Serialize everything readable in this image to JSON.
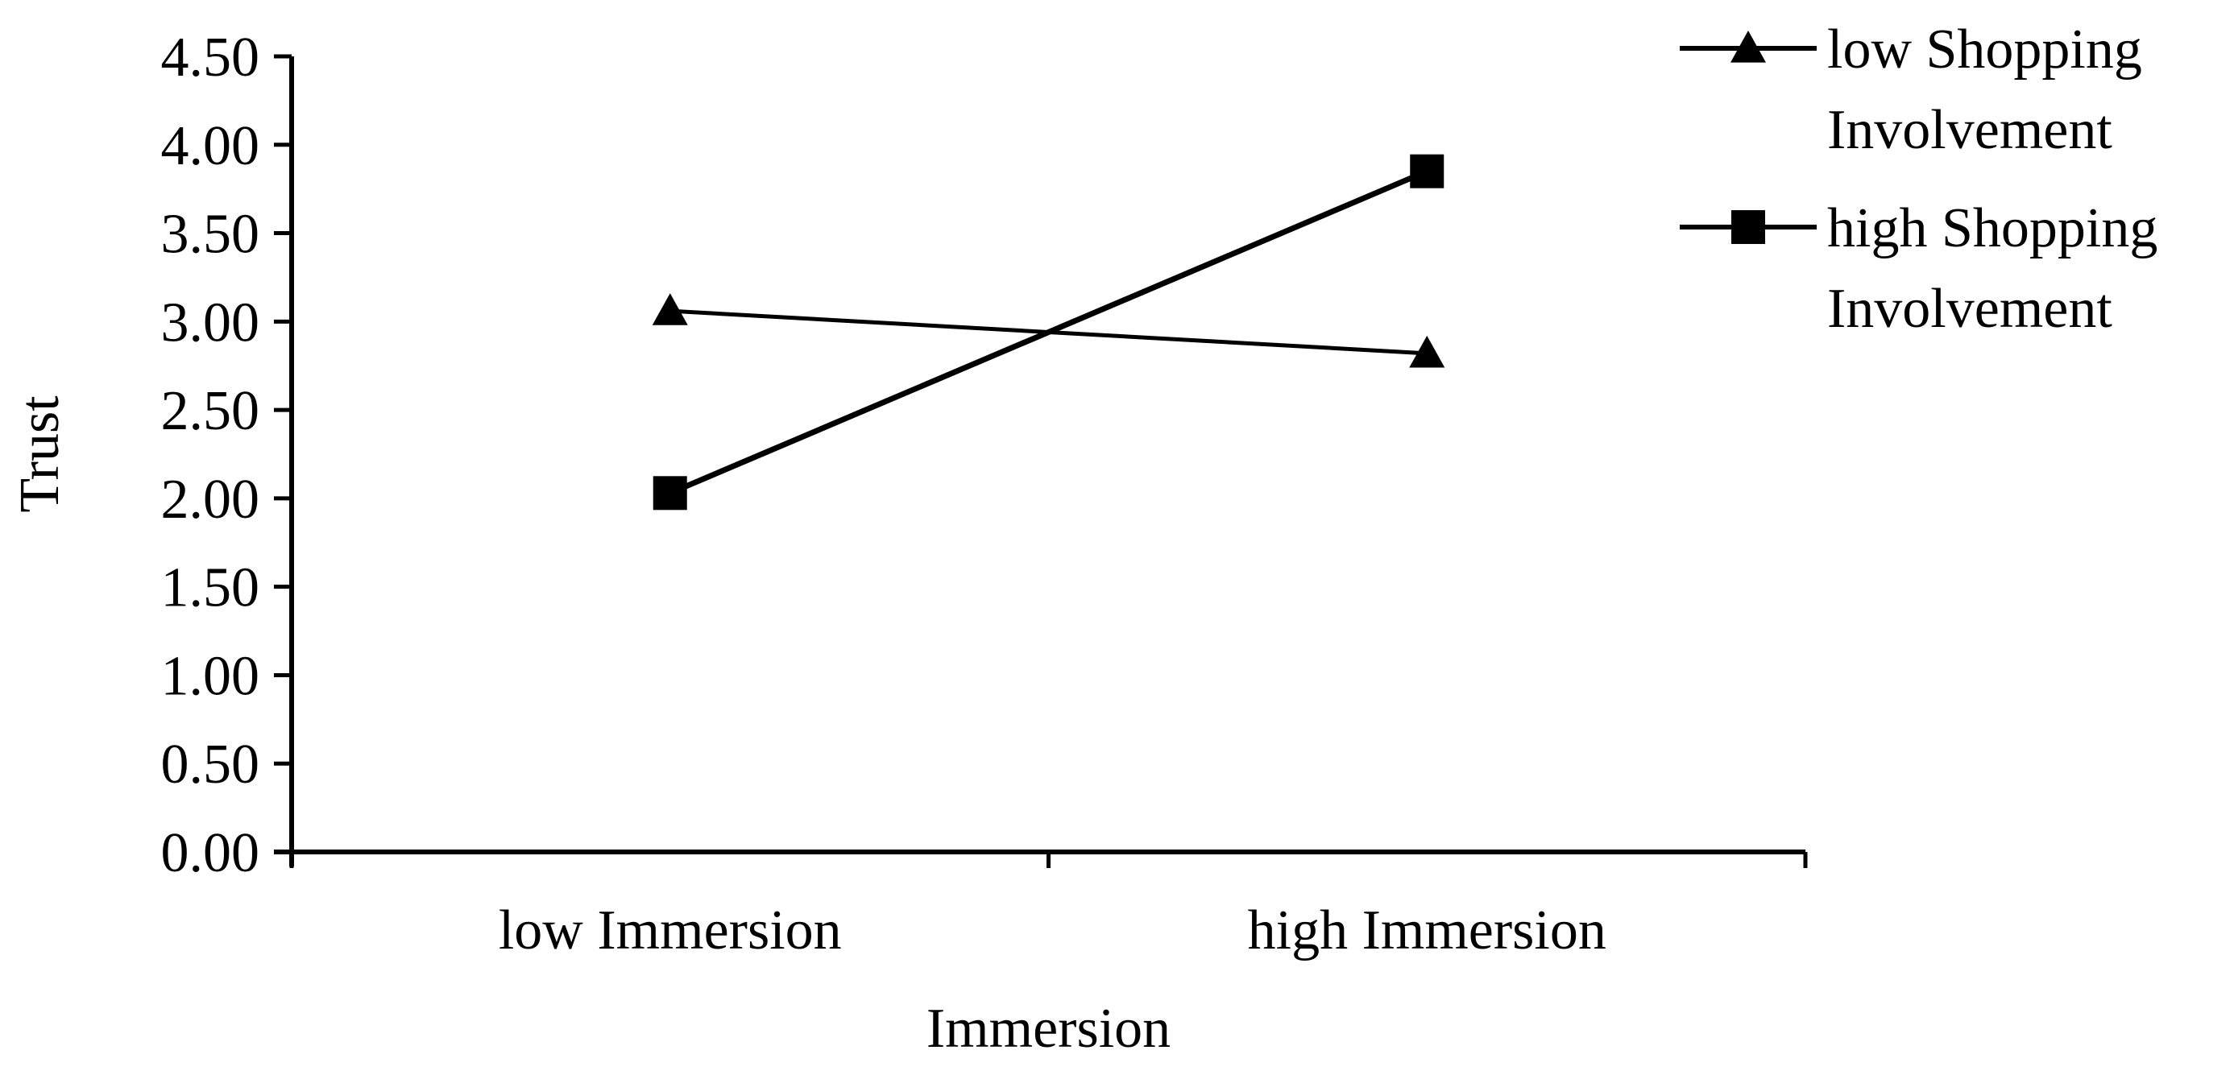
{
  "chart_data": {
    "type": "line",
    "title": "",
    "xlabel": "Immersion",
    "ylabel": "Trust",
    "categories": [
      "low Immersion",
      "high Immersion"
    ],
    "ylim": [
      0,
      4.5
    ],
    "yticks": [
      "0.00",
      "0.50",
      "1.00",
      "1.50",
      "2.00",
      "2.50",
      "3.00",
      "3.50",
      "4.00",
      "4.50"
    ],
    "grid": false,
    "legend_position": "top-right",
    "series": [
      {
        "name": "low Shopping Involvement",
        "legend_lines": [
          "low Shopping",
          "Involvement"
        ],
        "marker": "triangle",
        "values": [
          3.06,
          2.82
        ]
      },
      {
        "name": "high Shopping Involvement",
        "legend_lines": [
          "high Shopping",
          "Involvement"
        ],
        "marker": "square",
        "values": [
          2.03,
          3.85
        ]
      }
    ],
    "colors": {
      "line": "#000000",
      "background": "#ffffff"
    }
  }
}
